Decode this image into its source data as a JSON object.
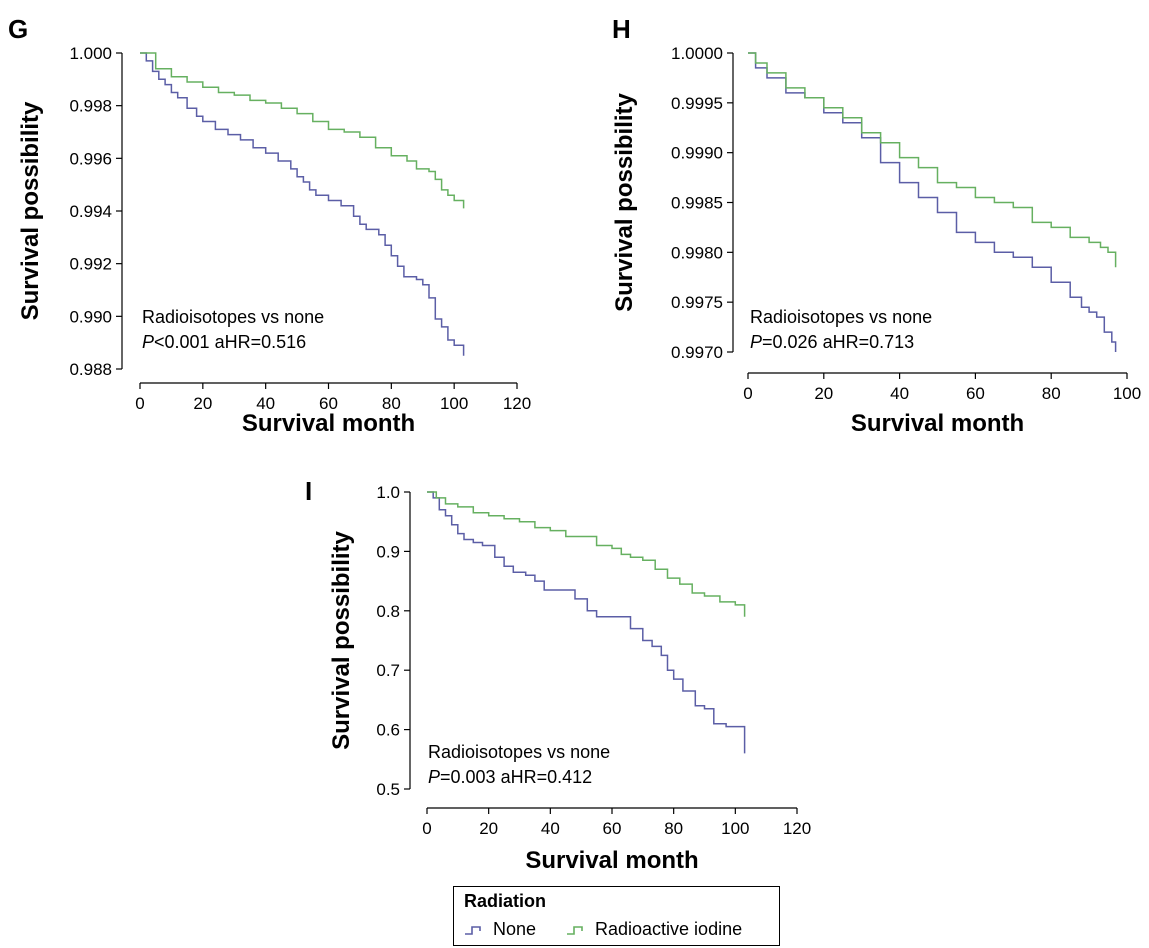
{
  "chart_data": [
    {
      "type": "line",
      "panel": "G",
      "xlabel": "Survival month",
      "ylabel": "Survival possibility",
      "xlim": [
        0,
        120
      ],
      "ylim": [
        0.988,
        1.0
      ],
      "xticks": [
        0,
        20,
        40,
        60,
        80,
        100,
        120
      ],
      "yticks": [
        0.988,
        0.99,
        0.992,
        0.994,
        0.996,
        0.998,
        1.0
      ],
      "ytick_labels": [
        "0.988",
        "0.990",
        "0.992",
        "0.994",
        "0.996",
        "0.998",
        "1.000"
      ],
      "annotation": {
        "line1": "Radioisotopes vs none",
        "p_symbol": "P",
        "line2": "<0.001 aHR=0.516"
      },
      "series": [
        {
          "name": "None",
          "color": "#5b5ea6",
          "x": [
            0,
            2,
            4,
            6,
            8,
            10,
            12,
            15,
            18,
            20,
            24,
            28,
            32,
            36,
            40,
            44,
            48,
            50,
            52,
            54,
            56,
            60,
            64,
            68,
            70,
            72,
            76,
            78,
            80,
            82,
            84,
            88,
            90,
            92,
            94,
            96,
            98,
            100,
            103
          ],
          "y": [
            1.0,
            0.9997,
            0.9993,
            0.999,
            0.9988,
            0.9985,
            0.9983,
            0.9979,
            0.9976,
            0.9974,
            0.9971,
            0.9969,
            0.9967,
            0.9964,
            0.9962,
            0.9959,
            0.9956,
            0.9953,
            0.9951,
            0.9948,
            0.9946,
            0.9944,
            0.9942,
            0.9938,
            0.9935,
            0.9933,
            0.9931,
            0.9927,
            0.9923,
            0.9919,
            0.9915,
            0.9914,
            0.9912,
            0.9907,
            0.9899,
            0.9896,
            0.9891,
            0.9889,
            0.9885
          ]
        },
        {
          "name": "Radioactive iodine",
          "color": "#66b060",
          "x": [
            0,
            5,
            10,
            15,
            20,
            25,
            30,
            35,
            40,
            45,
            50,
            55,
            60,
            65,
            70,
            75,
            80,
            85,
            88,
            90,
            92,
            94,
            96,
            98,
            100,
            103
          ],
          "y": [
            1.0,
            0.9994,
            0.9991,
            0.9989,
            0.9987,
            0.9985,
            0.9984,
            0.9982,
            0.9981,
            0.9979,
            0.9977,
            0.9974,
            0.9971,
            0.997,
            0.9968,
            0.9964,
            0.9961,
            0.9959,
            0.9956,
            0.9956,
            0.9955,
            0.9952,
            0.9948,
            0.9946,
            0.9944,
            0.9941
          ]
        }
      ]
    },
    {
      "type": "line",
      "panel": "H",
      "xlabel": "Survival month",
      "ylabel": "Survival possibility",
      "xlim": [
        0,
        100
      ],
      "ylim": [
        0.997,
        1.0
      ],
      "xticks": [
        0,
        20,
        40,
        60,
        80,
        100
      ],
      "yticks": [
        0.997,
        0.9975,
        0.998,
        0.9985,
        0.999,
        0.9995,
        1.0
      ],
      "ytick_labels": [
        "0.9970",
        "0.9975",
        "0.9980",
        "0.9985",
        "0.9990",
        "0.9995",
        "1.0000"
      ],
      "annotation": {
        "line1": "Radioisotopes vs none",
        "p_symbol": "P",
        "line2": "=0.026 aHR=0.713"
      },
      "series": [
        {
          "name": "None",
          "color": "#5b5ea6",
          "x": [
            0,
            2,
            5,
            10,
            15,
            20,
            25,
            30,
            35,
            40,
            45,
            50,
            55,
            60,
            65,
            70,
            75,
            80,
            85,
            88,
            90,
            92,
            94,
            96,
            97
          ],
          "y": [
            1.0,
            0.99985,
            0.99975,
            0.9996,
            0.99955,
            0.9994,
            0.9993,
            0.99915,
            0.9989,
            0.9987,
            0.99855,
            0.9984,
            0.9982,
            0.9981,
            0.998,
            0.99795,
            0.99785,
            0.9977,
            0.99755,
            0.99745,
            0.9974,
            0.99735,
            0.9972,
            0.9971,
            0.997
          ]
        },
        {
          "name": "Radioactive iodine",
          "color": "#66b060",
          "x": [
            0,
            2,
            5,
            10,
            15,
            20,
            25,
            30,
            35,
            40,
            45,
            50,
            55,
            60,
            65,
            70,
            75,
            80,
            85,
            90,
            93,
            95,
            97
          ],
          "y": [
            1.0,
            0.9999,
            0.9998,
            0.99965,
            0.99955,
            0.99945,
            0.99935,
            0.9992,
            0.9991,
            0.99895,
            0.99885,
            0.9987,
            0.99865,
            0.99855,
            0.9985,
            0.99845,
            0.9983,
            0.99825,
            0.99815,
            0.9981,
            0.99805,
            0.998,
            0.99785
          ]
        }
      ]
    },
    {
      "type": "line",
      "panel": "I",
      "xlabel": "Survival month",
      "ylabel": "Survival possibility",
      "xlim": [
        0,
        120
      ],
      "ylim": [
        0.5,
        1.0
      ],
      "xticks": [
        0,
        20,
        40,
        60,
        80,
        100,
        120
      ],
      "yticks": [
        0.5,
        0.6,
        0.7,
        0.8,
        0.9,
        1.0
      ],
      "ytick_labels": [
        "0.5",
        "0.6",
        "0.7",
        "0.8",
        "0.9",
        "1.0"
      ],
      "annotation": {
        "line1": "Radioisotopes vs none",
        "p_symbol": "P",
        "line2": "=0.003 aHR=0.412"
      },
      "series": [
        {
          "name": "None",
          "color": "#5b5ea6",
          "x": [
            0,
            2,
            4,
            6,
            8,
            10,
            12,
            15,
            18,
            22,
            25,
            28,
            32,
            35,
            38,
            42,
            48,
            52,
            55,
            58,
            62,
            66,
            70,
            73,
            76,
            78,
            80,
            83,
            87,
            90,
            93,
            97,
            100,
            103
          ],
          "y": [
            1.0,
            0.99,
            0.97,
            0.96,
            0.945,
            0.93,
            0.92,
            0.915,
            0.91,
            0.89,
            0.875,
            0.865,
            0.86,
            0.85,
            0.835,
            0.835,
            0.82,
            0.8,
            0.79,
            0.79,
            0.79,
            0.77,
            0.75,
            0.74,
            0.725,
            0.7,
            0.685,
            0.665,
            0.64,
            0.635,
            0.61,
            0.605,
            0.605,
            0.56
          ]
        },
        {
          "name": "Radioactive iodine",
          "color": "#66b060",
          "x": [
            0,
            3,
            6,
            10,
            15,
            20,
            25,
            30,
            35,
            40,
            45,
            50,
            55,
            60,
            63,
            66,
            70,
            74,
            78,
            82,
            86,
            90,
            95,
            100,
            103
          ],
          "y": [
            1.0,
            0.99,
            0.98,
            0.975,
            0.965,
            0.96,
            0.955,
            0.95,
            0.94,
            0.935,
            0.925,
            0.925,
            0.91,
            0.905,
            0.895,
            0.89,
            0.885,
            0.87,
            0.855,
            0.845,
            0.83,
            0.825,
            0.815,
            0.81,
            0.79
          ]
        }
      ]
    }
  ],
  "legend": {
    "title": "Radiation",
    "items": [
      {
        "label": "None",
        "color": "#5b5ea6"
      },
      {
        "label": "Radioactive iodine",
        "color": "#66b060"
      }
    ]
  }
}
